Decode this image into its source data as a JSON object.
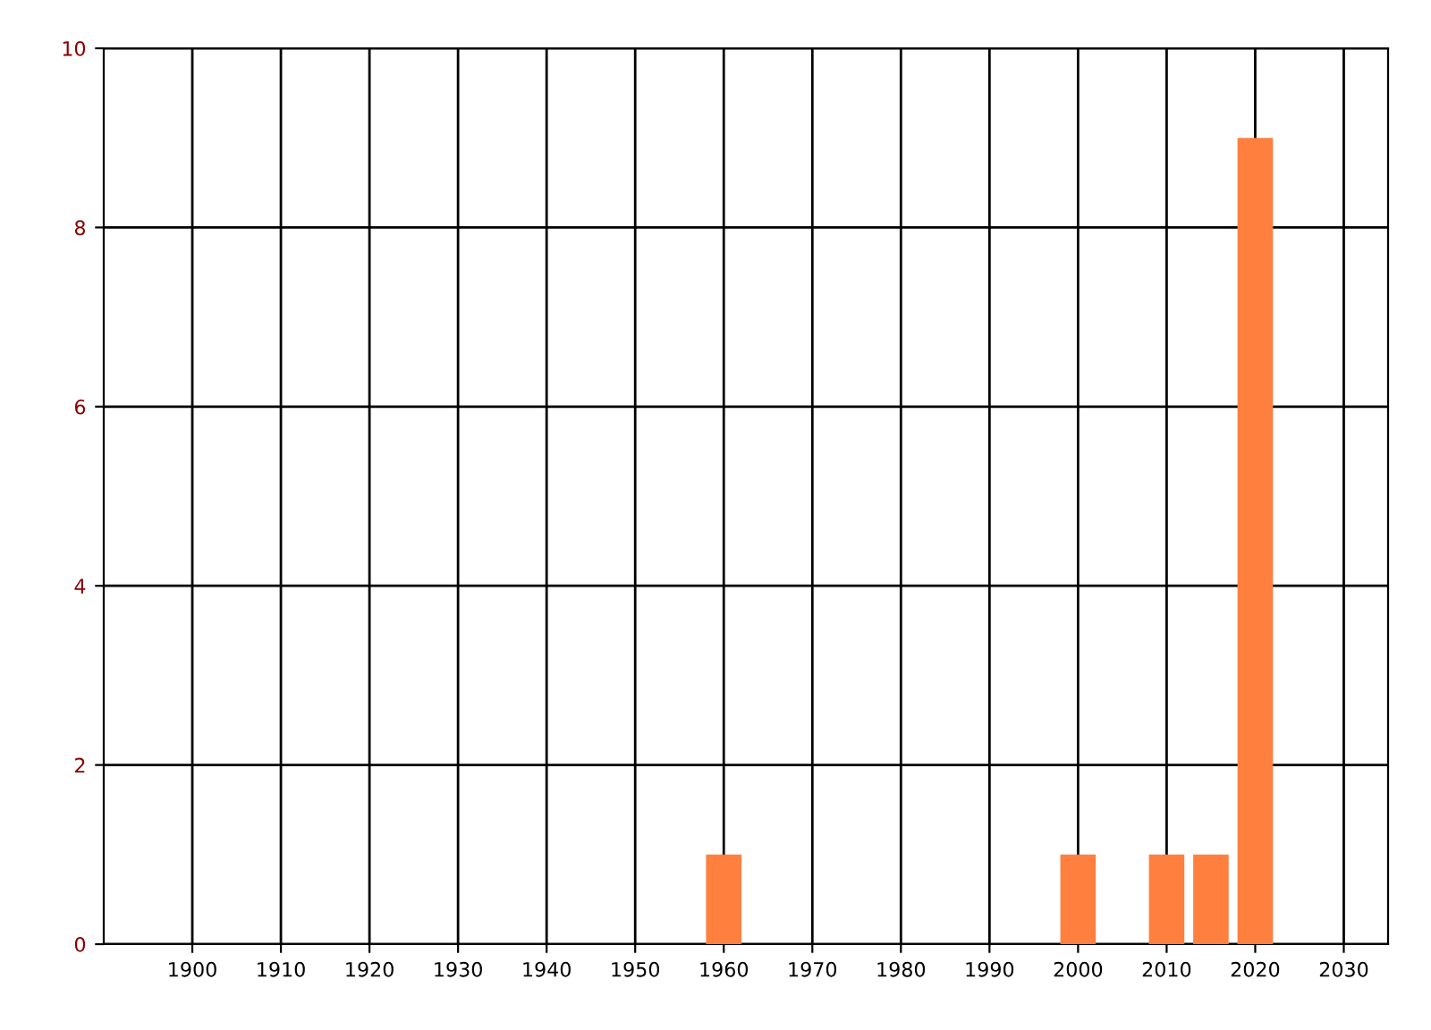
{
  "chart_data": {
    "type": "bar",
    "x": [
      1960,
      2000,
      2010,
      2015,
      2020
    ],
    "values": [
      1,
      1,
      1,
      1,
      9
    ],
    "color": "#ff7f3f",
    "xlim": [
      1890,
      2035
    ],
    "xticks": [
      1900,
      1910,
      1920,
      1930,
      1940,
      1950,
      1960,
      1970,
      1980,
      1990,
      2000,
      2010,
      2020,
      2030
    ],
    "ylim": [
      0,
      10
    ],
    "yticks": [
      0,
      2,
      4,
      6,
      8,
      10
    ],
    "grid": true
  }
}
